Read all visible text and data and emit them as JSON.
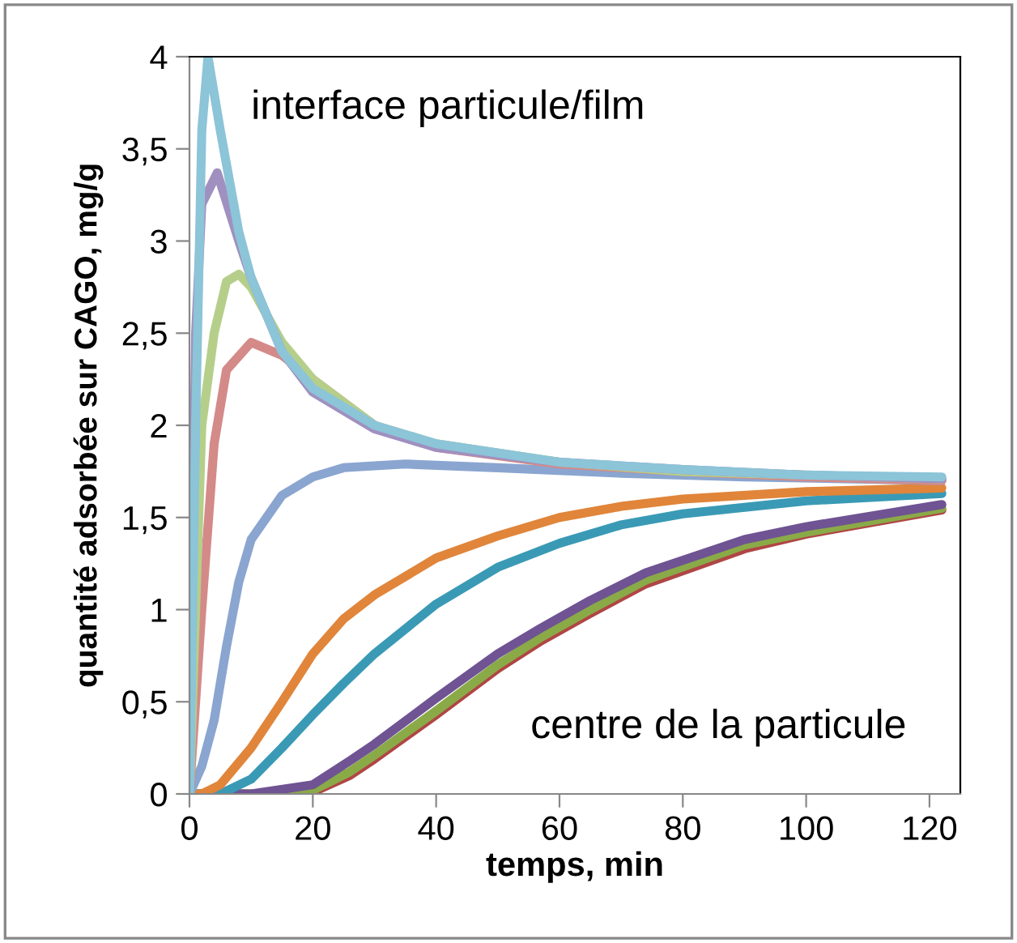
{
  "chart_data": {
    "type": "line",
    "xlabel": "temps, min",
    "ylabel": "quantité adsorbée sur CAGO, mg/g",
    "annotations": [
      "interface particule/film",
      "centre de la particule"
    ],
    "xlim": [
      0,
      125
    ],
    "xticks": [
      0,
      20,
      40,
      60,
      80,
      100,
      120
    ],
    "ylim": [
      0,
      4
    ],
    "yticks": [
      0,
      {
        "value": 0.5,
        "label": "0,5"
      },
      1,
      {
        "value": 1.5,
        "label": "1,5"
      },
      2,
      {
        "value": 2.5,
        "label": "2,5"
      },
      3,
      {
        "value": 3.5,
        "label": "3,5"
      },
      4
    ],
    "grid": false,
    "marker": "none",
    "line_style": "solid",
    "series": [
      {
        "color": "#b04545",
        "x": [
          0,
          10,
          20,
          26,
          30,
          40,
          50,
          57,
          65,
          74,
          90,
          100,
          122
        ],
        "values": [
          0,
          0,
          0.01,
          0.1,
          0.19,
          0.43,
          0.68,
          0.83,
          0.98,
          1.14,
          1.33,
          1.41,
          1.54
        ]
      },
      {
        "color": "#8aaa48",
        "x": [
          0,
          10,
          20,
          26,
          30,
          40,
          50,
          57,
          65,
          74,
          90,
          100,
          122
        ],
        "values": [
          0,
          0,
          0.02,
          0.12,
          0.21,
          0.45,
          0.7,
          0.85,
          1.0,
          1.16,
          1.35,
          1.42,
          1.55
        ]
      },
      {
        "color": "#6f5393",
        "x": [
          0,
          10,
          20,
          26,
          30,
          40,
          50,
          57,
          65,
          74,
          90,
          100,
          122
        ],
        "values": [
          0,
          0,
          0.05,
          0.18,
          0.27,
          0.52,
          0.76,
          0.9,
          1.05,
          1.2,
          1.38,
          1.45,
          1.57
        ]
      },
      {
        "color": "#3a9ab5",
        "x": [
          0,
          5,
          10,
          15,
          20,
          25,
          30,
          40,
          50,
          60,
          70,
          80,
          100,
          122
        ],
        "values": [
          0,
          0,
          0.08,
          0.25,
          0.43,
          0.6,
          0.76,
          1.03,
          1.23,
          1.36,
          1.46,
          1.52,
          1.59,
          1.63
        ]
      },
      {
        "color": "#e0853a",
        "x": [
          0,
          2,
          5,
          10,
          15,
          20,
          25,
          30,
          40,
          50,
          60,
          70,
          80,
          100,
          122
        ],
        "values": [
          0,
          0,
          0.05,
          0.25,
          0.5,
          0.76,
          0.95,
          1.08,
          1.28,
          1.4,
          1.5,
          1.56,
          1.6,
          1.64,
          1.66
        ]
      },
      {
        "color": "#8aa5d0",
        "x": [
          0,
          2,
          4,
          6,
          8,
          10,
          15,
          20,
          25,
          35,
          50,
          70,
          90,
          122
        ],
        "values": [
          0,
          0.15,
          0.4,
          0.8,
          1.15,
          1.38,
          1.62,
          1.72,
          1.77,
          1.79,
          1.77,
          1.74,
          1.72,
          1.7
        ]
      },
      {
        "color": "#d48a88",
        "x": [
          0,
          2,
          4,
          6,
          10,
          15,
          20,
          30,
          40,
          60,
          80,
          100,
          122
        ],
        "values": [
          0,
          1.0,
          1.9,
          2.3,
          2.45,
          2.38,
          2.25,
          2.0,
          1.88,
          1.79,
          1.75,
          1.72,
          1.7
        ]
      },
      {
        "color": "#b5cf8a",
        "x": [
          0,
          2,
          4,
          6,
          8,
          10,
          15,
          20,
          30,
          40,
          60,
          80,
          100,
          122
        ],
        "values": [
          0,
          2.0,
          2.5,
          2.78,
          2.82,
          2.75,
          2.45,
          2.25,
          2.0,
          1.9,
          1.8,
          1.75,
          1.73,
          1.71
        ]
      },
      {
        "color": "#a090c0",
        "x": [
          0,
          1,
          2,
          4.5,
          8,
          10,
          15,
          20,
          30,
          40,
          60,
          80,
          100,
          122
        ],
        "values": [
          0,
          2.5,
          3.2,
          3.37,
          3.0,
          2.8,
          2.4,
          2.18,
          1.98,
          1.88,
          1.8,
          1.76,
          1.73,
          1.71
        ]
      },
      {
        "color": "#8cc4d8",
        "x": [
          0,
          1,
          2,
          3,
          5,
          8,
          10,
          15,
          20,
          30,
          40,
          60,
          80,
          100,
          122
        ],
        "values": [
          0,
          2.0,
          3.6,
          4.0,
          3.6,
          3.05,
          2.8,
          2.4,
          2.2,
          2.0,
          1.9,
          1.8,
          1.76,
          1.73,
          1.72
        ]
      }
    ]
  }
}
